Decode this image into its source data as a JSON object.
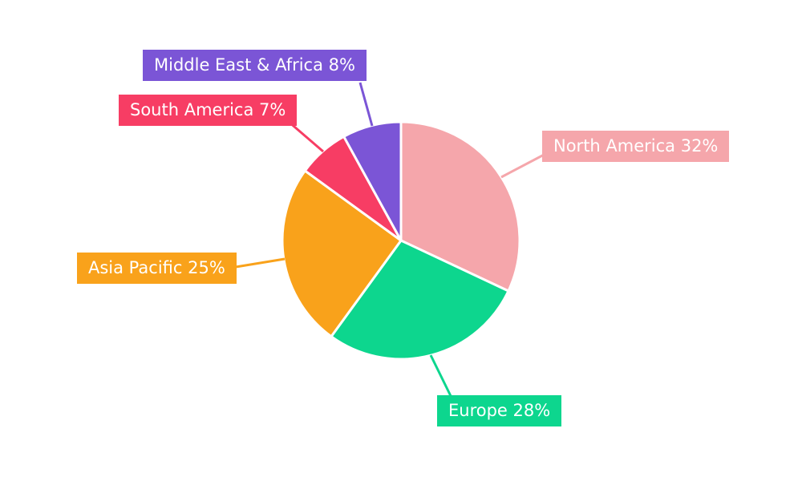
{
  "page": {
    "background_color": "#ffffff"
  },
  "chart_data": {
    "type": "pie",
    "title": "",
    "legend": "none",
    "direction": "clockwise",
    "start_angle_deg": 0,
    "labels": [
      "North America",
      "Europe",
      "Asia Pacific",
      "South America",
      "Middle East & Africa"
    ],
    "values": [
      32,
      28,
      25,
      7,
      8
    ],
    "unit": "%",
    "display_labels": [
      "North America 32%",
      "Europe 28%",
      "Asia Pacific 25%",
      "South America 7%",
      "Middle East & Africa 8%"
    ],
    "colors": [
      "#F5A6AB",
      "#0DD68E",
      "#F9A21B",
      "#F73D64",
      "#7B55D6"
    ],
    "label_text_color": "#ffffff",
    "slice_border_color": "#ffffff"
  }
}
